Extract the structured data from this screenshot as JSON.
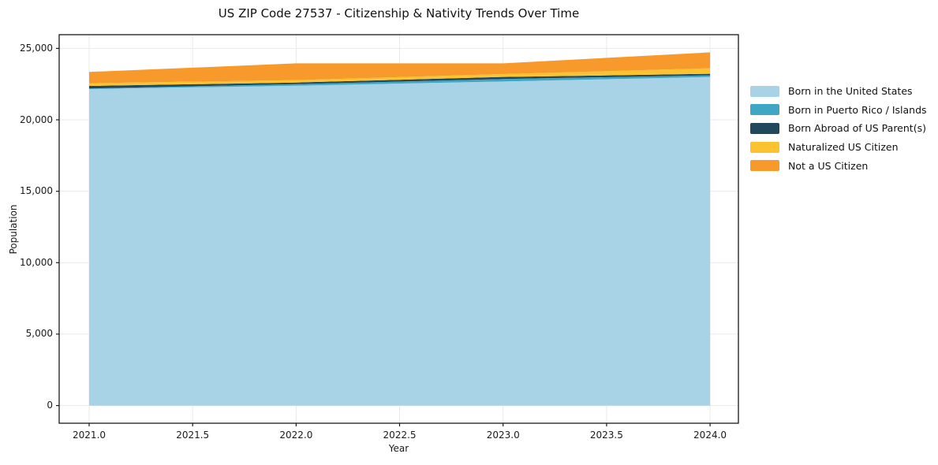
{
  "figure": {
    "title": "US ZIP Code 27537 - Citizenship & Nativity Trends Over Time",
    "xlabel": "Year",
    "ylabel": "Population"
  },
  "chart_data": {
    "type": "area",
    "stacked": true,
    "title": "US ZIP Code 27537 - Citizenship & Nativity Trends Over Time",
    "xlabel": "Year",
    "ylabel": "Population",
    "x": [
      2021,
      2022,
      2023,
      2024
    ],
    "series": [
      {
        "name": "Born in the United States",
        "color": "#a8d3e6",
        "values": [
          22150,
          22390,
          22680,
          23000
        ]
      },
      {
        "name": "Born in Puerto Rico / Islands",
        "color": "#3fa6c4",
        "values": [
          40,
          110,
          170,
          110
        ]
      },
      {
        "name": "Born Abroad of US Parent(s)",
        "color": "#22485c",
        "values": [
          180,
          110,
          150,
          110
        ]
      },
      {
        "name": "Naturalized US Citizen",
        "color": "#fcc331",
        "values": [
          190,
          170,
          200,
          390
        ]
      },
      {
        "name": "Not a US Citizen",
        "color": "#f8992c",
        "values": [
          790,
          1170,
          750,
          1110
        ]
      }
    ],
    "stack_totals": [
      23350,
      23950,
      23950,
      24720
    ],
    "x_tick_labels": [
      "2021.0",
      "2021.5",
      "2022.0",
      "2022.5",
      "2023.0",
      "2023.5",
      "2024.0"
    ],
    "x_tick_values": [
      2021.0,
      2021.5,
      2022.0,
      2022.5,
      2023.0,
      2023.5,
      2024.0
    ],
    "y_tick_labels": [
      "0",
      "5,000",
      "10,000",
      "15,000",
      "20,000",
      "25,000"
    ],
    "y_tick_values": [
      0,
      5000,
      10000,
      15000,
      20000,
      25000
    ],
    "xlim": [
      2020.855,
      2024.137
    ],
    "ylim": [
      -1236,
      25958
    ],
    "grid": true,
    "grid_color": "#e9e9e9",
    "spine_color": "#1a1a1a",
    "legend_position": "right-outside",
    "legend_frame": false
  }
}
